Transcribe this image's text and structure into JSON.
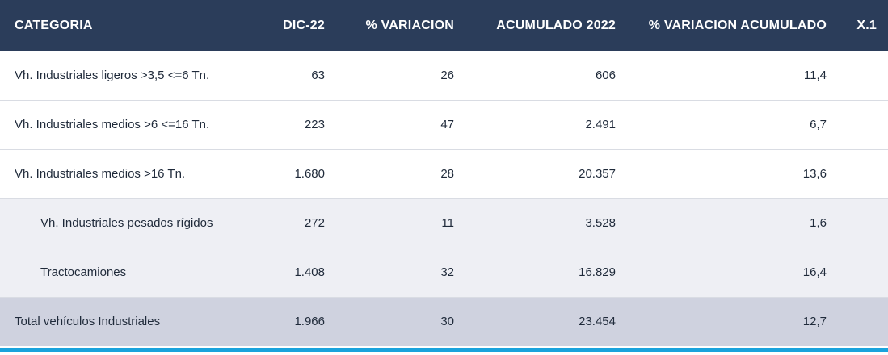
{
  "table": {
    "columns": [
      "CATEGORIA",
      "DIC-22",
      "% VARIACION",
      "ACUMULADO 2022",
      "% VARIACION ACUMULADO",
      "X.1"
    ],
    "rows": [
      {
        "categoria": "Vh. Industriales ligeros >3,5 <=6 Tn.",
        "dic22": "63",
        "variacion": "26",
        "acumulado": "606",
        "var_acumulado": "11,4",
        "x1": ""
      },
      {
        "categoria": "Vh. Industriales medios >6 <=16 Tn.",
        "dic22": "223",
        "variacion": "47",
        "acumulado": "2.491",
        "var_acumulado": "6,7",
        "x1": ""
      },
      {
        "categoria": "Vh. Industriales medios >16 Tn.",
        "dic22": "1.680",
        "variacion": "28",
        "acumulado": "20.357",
        "var_acumulado": "13,6",
        "x1": ""
      },
      {
        "categoria": "Vh. Industriales pesados rígidos",
        "dic22": "272",
        "variacion": "11",
        "acumulado": "3.528",
        "var_acumulado": "1,6",
        "x1": ""
      },
      {
        "categoria": "Tractocamiones",
        "dic22": "1.408",
        "variacion": "32",
        "acumulado": "16.829",
        "var_acumulado": "16,4",
        "x1": ""
      },
      {
        "categoria": "Total vehículos Industriales",
        "dic22": "1.966",
        "variacion": "30",
        "acumulado": "23.454",
        "var_acumulado": "12,7",
        "x1": ""
      }
    ]
  },
  "colors": {
    "header_bg": "#2b3d5a",
    "sub_row_bg": "#eeeff4",
    "total_row_bg": "#cfd2df",
    "accent_line": "#1aa3dc"
  }
}
